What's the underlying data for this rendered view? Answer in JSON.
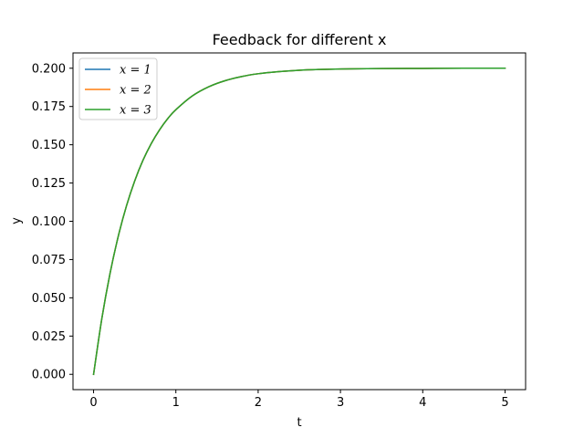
{
  "chart_data": {
    "type": "line",
    "title": "Feedback for different x",
    "xlabel": "t",
    "ylabel": "y",
    "xlim": [
      -0.25,
      5.25
    ],
    "ylim": [
      -0.01,
      0.21
    ],
    "x_ticks": [
      0,
      1,
      2,
      3,
      4,
      5
    ],
    "x_tick_labels": [
      "0",
      "1",
      "2",
      "3",
      "4",
      "5"
    ],
    "y_ticks": [
      0.0,
      0.025,
      0.05,
      0.075,
      0.1,
      0.125,
      0.15,
      0.175,
      0.2
    ],
    "y_tick_labels": [
      "0.000",
      "0.025",
      "0.050",
      "0.075",
      "0.100",
      "0.125",
      "0.150",
      "0.175",
      "0.200"
    ],
    "grid": false,
    "legend_position": "top-left",
    "x": [
      0,
      0.1,
      0.2,
      0.3,
      0.4,
      0.5,
      0.6,
      0.7,
      0.8,
      0.9,
      1.0,
      1.2,
      1.4,
      1.6,
      1.8,
      2.0,
      2.25,
      2.5,
      2.75,
      3.0,
      3.5,
      4.0,
      4.5,
      5.0
    ],
    "series": [
      {
        "name": "x = 1",
        "color": "#1f77b4",
        "values": [
          0.0,
          0.0363,
          0.0659,
          0.0902,
          0.1101,
          0.1264,
          0.1398,
          0.1507,
          0.1596,
          0.167,
          0.1729,
          0.1819,
          0.1879,
          0.1919,
          0.1946,
          0.1964,
          0.1978,
          0.1987,
          0.1992,
          0.1995,
          0.1998,
          0.1999,
          0.2,
          0.2
        ]
      },
      {
        "name": "x = 2",
        "color": "#ff7f0e",
        "values": [
          0.0,
          0.0363,
          0.0659,
          0.0902,
          0.1101,
          0.1264,
          0.1398,
          0.1507,
          0.1596,
          0.167,
          0.1729,
          0.1819,
          0.1879,
          0.1919,
          0.1946,
          0.1964,
          0.1978,
          0.1987,
          0.1992,
          0.1995,
          0.1998,
          0.1999,
          0.2,
          0.2
        ]
      },
      {
        "name": "x = 3",
        "color": "#2ca02c",
        "values": [
          0.0,
          0.0363,
          0.0659,
          0.0902,
          0.1101,
          0.1264,
          0.1398,
          0.1507,
          0.1596,
          0.167,
          0.1729,
          0.1819,
          0.1879,
          0.1919,
          0.1946,
          0.1964,
          0.1978,
          0.1987,
          0.1992,
          0.1995,
          0.1998,
          0.1999,
          0.2,
          0.2
        ]
      }
    ]
  }
}
